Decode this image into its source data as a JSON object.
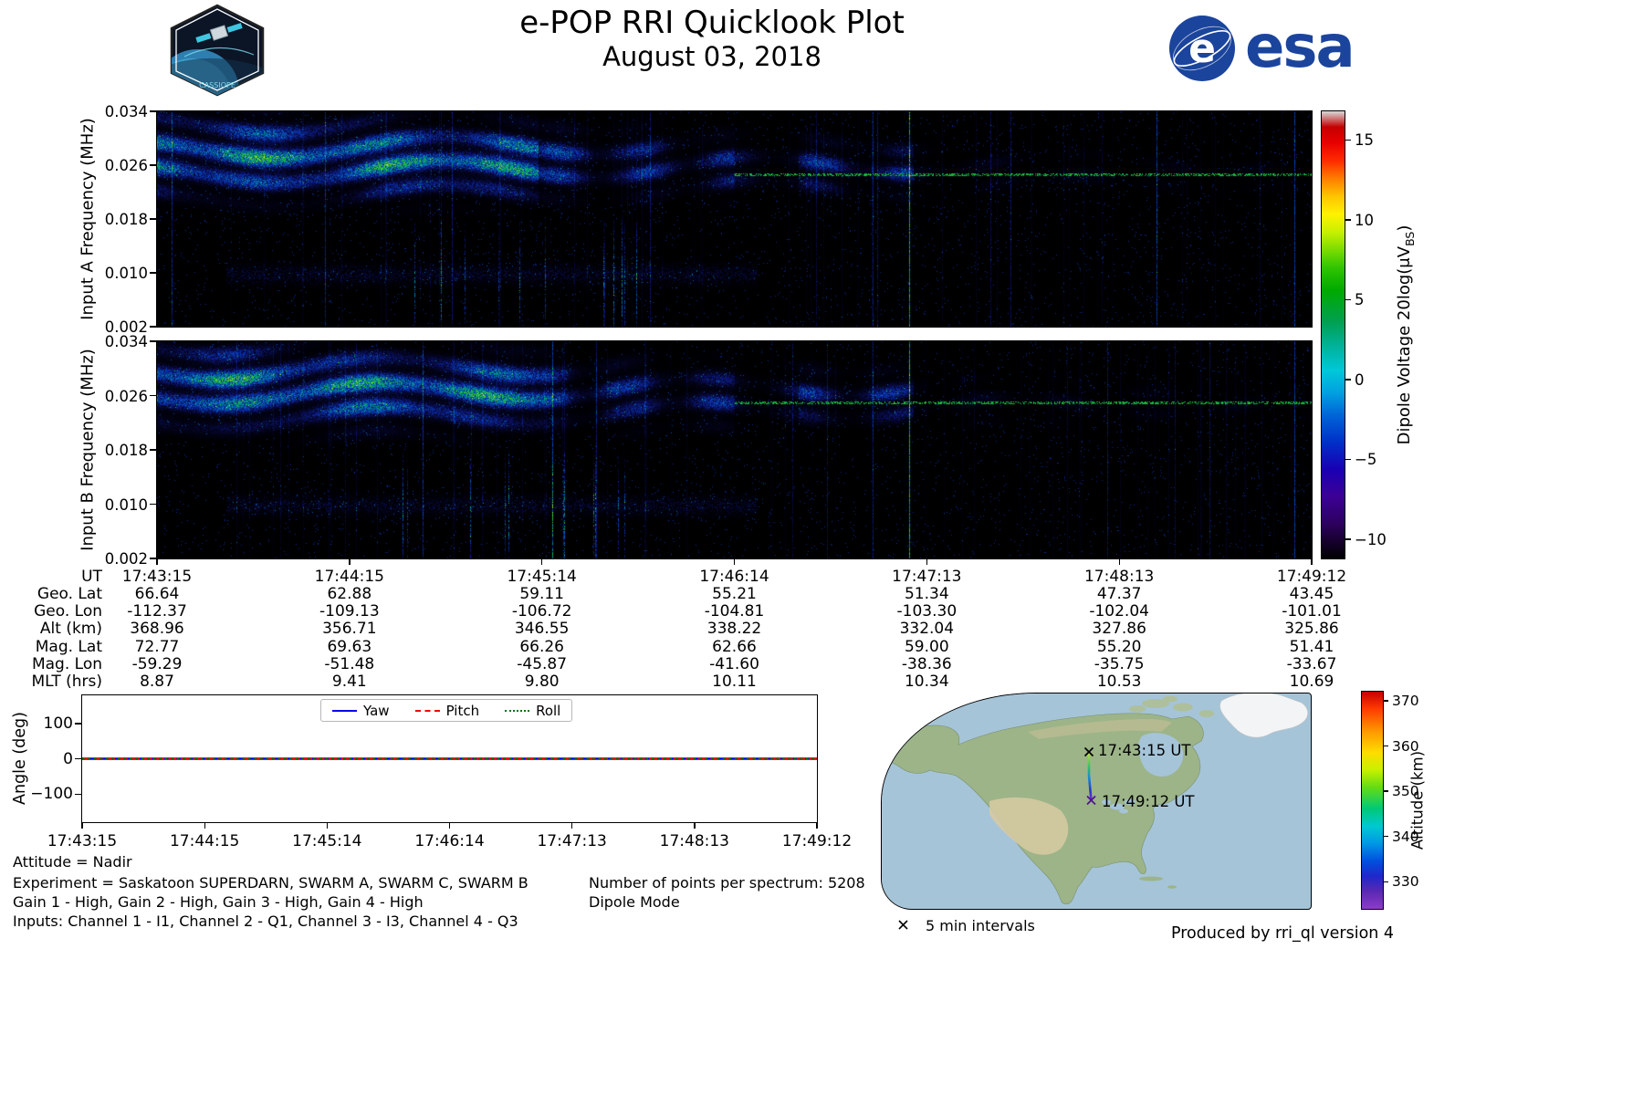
{
  "header": {
    "title": "e-POP RRI Quicklook Plot",
    "subtitle": "August 03, 2018",
    "esa_wordmark": "esa",
    "patch_text": "CASSIOPE"
  },
  "colors": {
    "esa_blue": "#1b449c",
    "spectrogram_background": "#000000",
    "ocean": "#a5c4d8",
    "land": "#9cb488"
  },
  "labels": {
    "dipole_pre": "Dipole Voltage 20log(μV",
    "dipole_sub": "BS",
    "dipole_post": ")"
  },
  "chart_data": [
    {
      "id": "input_a_spectrogram",
      "type": "heatmap",
      "ylabel": "Input A Frequency (MHz)",
      "ylim": [
        0.002,
        0.034
      ],
      "yticks": [
        "0.034",
        "0.026",
        "0.018",
        "0.010",
        "0.002"
      ],
      "x_start": "17:43:15",
      "x_end": "17:49:12",
      "value_label": "Dipole Voltage 20log(μV_BS)",
      "value_ticks": [
        "15",
        "10",
        "5",
        "0",
        "−5",
        "−10"
      ],
      "value_tick_numbers": [
        15,
        10,
        5,
        0,
        -5,
        -10
      ],
      "value_range": [
        -11.2,
        16.8
      ],
      "colormap": "nipy_spectral",
      "content_summary": "Strong wavy broadband HF emission between ~0.020 and 0.034 MHz from 17:43 to ~17:45, weakening and narrowing toward ~0.025 MHz after 17:46; faint band near 0.010 MHz early in pass; scattered vertical interference lines; background near -10 dB."
    },
    {
      "id": "input_b_spectrogram",
      "type": "heatmap",
      "ylabel": "Input B Frequency (MHz)",
      "ylim": [
        0.002,
        0.034
      ],
      "yticks": [
        "0.034",
        "0.026",
        "0.018",
        "0.010",
        "0.002"
      ],
      "x_start": "17:43:15",
      "x_end": "17:49:12",
      "value_label": "Dipole Voltage 20log(μV_BS)",
      "value_ticks": [
        "15",
        "10",
        "5",
        "0",
        "−5",
        "−10"
      ],
      "value_tick_numbers": [
        15,
        10,
        5,
        0,
        -5,
        -10
      ],
      "value_range": [
        -11.2,
        16.8
      ],
      "colormap": "nipy_spectral",
      "content_summary": "Same emission pattern as Input A: strong banded signal 0.020–0.034 MHz early, fading after 17:45 with a faint dotted line near 0.025 MHz persisting to 17:49; sparse vertical interference lines."
    },
    {
      "id": "attitude_angle_plot",
      "type": "line",
      "ylabel": "Angle (deg)",
      "yticks": [
        "100",
        "0",
        "−100"
      ],
      "ylim": [
        -180,
        180
      ],
      "x": [
        "17:43:15",
        "17:44:15",
        "17:45:14",
        "17:46:14",
        "17:47:13",
        "17:48:13",
        "17:49:12"
      ],
      "series": [
        {
          "name": "Yaw",
          "color": "#0000ee",
          "line_style": "solid",
          "values": [
            0,
            0,
            0,
            0,
            0,
            0,
            0
          ]
        },
        {
          "name": "Pitch",
          "color": "#ee0000",
          "line_style": "dashed",
          "values": [
            0,
            0,
            0,
            0,
            0,
            0,
            0
          ]
        },
        {
          "name": "Roll",
          "color": "#007700",
          "line_style": "dotted",
          "values": [
            0,
            0,
            0,
            0,
            0,
            0,
            0
          ]
        }
      ],
      "legend_position": "upper center",
      "grid": false
    },
    {
      "id": "ephemeris_table",
      "type": "table",
      "rows": [
        {
          "label": "UT",
          "values": [
            "17:43:15",
            "17:44:15",
            "17:45:14",
            "17:46:14",
            "17:47:13",
            "17:48:13",
            "17:49:12"
          ]
        },
        {
          "label": "Geo. Lat",
          "values": [
            "66.64",
            "62.88",
            "59.11",
            "55.21",
            "51.34",
            "47.37",
            "43.45"
          ]
        },
        {
          "label": "Geo. Lon",
          "values": [
            "-112.37",
            "-109.13",
            "-106.72",
            "-104.81",
            "-103.30",
            "-102.04",
            "-101.01"
          ]
        },
        {
          "label": "Alt (km)",
          "values": [
            "368.96",
            "356.71",
            "346.55",
            "338.22",
            "332.04",
            "327.86",
            "325.86"
          ]
        },
        {
          "label": "Mag. Lat",
          "values": [
            "72.77",
            "69.63",
            "66.26",
            "62.66",
            "59.00",
            "55.20",
            "51.41"
          ]
        },
        {
          "label": "Mag. Lon",
          "values": [
            "-59.29",
            "-51.48",
            "-45.87",
            "-41.60",
            "-38.36",
            "-35.75",
            "-33.67"
          ]
        },
        {
          "label": "MLT (hrs)",
          "values": [
            "8.87",
            "9.41",
            "9.80",
            "10.11",
            "10.34",
            "10.53",
            "10.69"
          ]
        }
      ]
    },
    {
      "id": "ground_track_map",
      "type": "map",
      "region": "North America",
      "track_start": {
        "label": "17:43:15 UT",
        "geo_lat": 66.64,
        "geo_lon": -112.37
      },
      "track_end": {
        "label": "17:49:12 UT",
        "geo_lat": 43.45,
        "geo_lon": -101.01
      },
      "marker_note": "5 min intervals",
      "colorbar": {
        "label": "Altitude (km)",
        "ticks": [
          "370",
          "360",
          "350",
          "340",
          "330"
        ],
        "range": [
          324,
          372
        ],
        "colormap": "rainbow"
      }
    }
  ],
  "footer": {
    "attitude": "Attitude = Nadir",
    "experiment": "Experiment = Saskatoon SUPERDARN, SWARM A, SWARM C, SWARM B",
    "gain": "Gain 1 - High, Gain 2 - High, Gain 3 - High, Gain 4 - High",
    "inputs": "Inputs: Channel 1 - I1, Channel 2 - Q1, Channel 3 - I3, Channel 4 - Q3",
    "points": "Number of points per spectrum: 5208",
    "mode": "Dipole Mode",
    "produced": "Produced by rri_ql version 4"
  }
}
